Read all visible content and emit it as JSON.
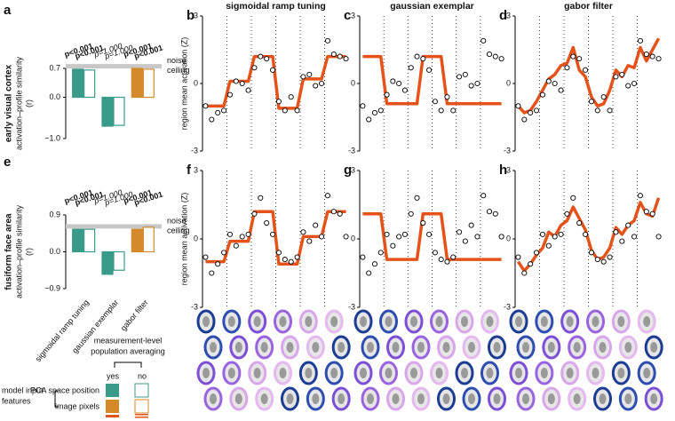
{
  "chart_data": [
    {
      "type": "bar",
      "label": "a",
      "row_label": "early visual cortex",
      "ylabel": [
        "activation–profile similarity",
        "(r)"
      ],
      "categories": [
        null,
        null,
        null
      ],
      "colors": [
        "#3a9a8a",
        "#3a9a8a",
        "#d4892a"
      ],
      "series": [
        {
          "fill": true,
          "values": [
            0.68,
            -0.7,
            0.7
          ]
        },
        {
          "fill": false,
          "values": [
            0.66,
            -0.68,
            0.68
          ]
        }
      ],
      "ylim": [
        -1.0,
        0.7
      ],
      "yticks": [
        {
          "value": 0.7,
          "label": "0.7"
        },
        {
          "value": 0,
          "label": "0.0"
        },
        {
          "value": -1,
          "label": "−1.0"
        }
      ],
      "noise_ceiling": 0.75,
      "noise_label": [
        "noise",
        "ceiling"
      ],
      "pvalues": [
        [
          "p<0.001",
          "p<0.001"
        ],
        [
          "p=1.000",
          "p=1.000"
        ],
        [
          "p<0.001",
          "p<0.001"
        ]
      ]
    },
    {
      "type": "line",
      "label": "b",
      "title": "sigmoidal ramp tuning",
      "ylabel": "region mean activation (Z)",
      "ylim": [
        -3,
        3
      ],
      "yticks": [
        3,
        0,
        -3
      ],
      "points": [
        -1.0,
        -1.6,
        -1.3,
        -1.2,
        -0.5,
        0.1,
        0.0,
        -0.3,
        0.7,
        1.2,
        1.1,
        0.6,
        -0.8,
        -1.2,
        -0.6,
        -1.2,
        0.3,
        0.4,
        -0.1,
        0.0,
        1.9,
        1.3,
        1.2,
        1.1
      ],
      "series": [
        {
          "color": "#e5531a",
          "values": [
            -1.0,
            -1.0,
            -1.0,
            -1.0,
            0.1,
            0.1,
            0.1,
            0.1,
            1.2,
            1.2,
            1.2,
            1.2,
            -1.1,
            -1.1,
            -1.1,
            -1.1,
            0.2,
            0.2,
            0.2,
            0.2,
            1.2,
            1.2,
            1.2,
            1.2
          ]
        }
      ]
    },
    {
      "type": "line",
      "label": "c",
      "title": "gaussian exemplar",
      "ylim": [
        -3,
        3
      ],
      "yticks": [
        3,
        0,
        -3
      ],
      "points": [
        -1.0,
        -1.6,
        -1.3,
        -1.2,
        -0.5,
        0.1,
        0.0,
        -0.3,
        0.7,
        1.2,
        1.1,
        0.6,
        -0.8,
        -1.2,
        -0.6,
        -1.2,
        0.3,
        0.4,
        -0.1,
        0.0,
        1.9,
        1.3,
        1.2,
        1.1
      ],
      "series": [
        {
          "color": "#e5531a",
          "values": [
            1.2,
            1.2,
            1.2,
            1.2,
            -0.9,
            -0.9,
            -0.9,
            -0.9,
            -0.9,
            -0.9,
            1.2,
            1.2,
            1.2,
            1.2,
            -0.9,
            -0.9,
            -0.9,
            -0.9,
            -0.9,
            -0.9,
            -0.9,
            -0.9,
            -0.9,
            -0.9
          ]
        }
      ]
    },
    {
      "type": "line",
      "label": "d",
      "title": "gabor filter",
      "ylim": [
        -3,
        3
      ],
      "yticks": [
        3,
        0,
        -3
      ],
      "points": [
        -1.0,
        -1.6,
        -1.3,
        -1.2,
        -0.5,
        0.1,
        0.0,
        -0.3,
        0.7,
        1.2,
        1.1,
        0.6,
        -0.8,
        -1.2,
        -0.6,
        -1.2,
        0.3,
        0.4,
        -0.1,
        0.0,
        1.9,
        1.3,
        1.2,
        1.1
      ],
      "series": [
        {
          "color": "#e5531a",
          "values": [
            -1.0,
            -1.3,
            -1.2,
            -0.8,
            -0.3,
            0.2,
            0.4,
            0.8,
            0.9,
            1.6,
            0.6,
            0.3,
            -0.6,
            -1.0,
            -0.9,
            -0.3,
            0.6,
            0.3,
            0.8,
            0.7,
            1.6,
            1.0,
            1.5,
            2.0
          ]
        }
      ]
    },
    {
      "type": "bar",
      "label": "e",
      "row_label": "fusiform face area",
      "ylabel": [
        "activation–profile similarity",
        "(r)"
      ],
      "categories": [
        "sigmoidal ramp tuning",
        "gaussian exemplar",
        "gabor filter"
      ],
      "colors": [
        "#3a9a8a",
        "#3a9a8a",
        "#d4892a"
      ],
      "series": [
        {
          "fill": true,
          "values": [
            0.55,
            -0.55,
            0.55
          ]
        },
        {
          "fill": false,
          "values": [
            0.55,
            -0.45,
            0.6
          ]
        }
      ],
      "ylim": [
        -0.9,
        0.9
      ],
      "yticks": [
        0.9,
        {
          "value": 0,
          "label": "0.0"
        },
        {
          "value": -0.9,
          "label": "−0.9"
        }
      ],
      "noise_ceiling": 0.62,
      "noise_label": [
        "noise",
        "ceiling"
      ],
      "pvalues": [
        [
          "p<0.001",
          "p<0.001"
        ],
        [
          "p=1.000",
          "p=1.000"
        ],
        [
          "p<0.001",
          "p<0.001"
        ]
      ]
    },
    {
      "type": "line",
      "label": "f",
      "ylabel": "region mean activation (Z)",
      "ylim": [
        -3,
        3
      ],
      "yticks": [
        3,
        0,
        -3
      ],
      "points": [
        -0.8,
        -1.5,
        -1.1,
        -0.6,
        0.2,
        -0.3,
        0.1,
        0.2,
        1.1,
        1.8,
        0.7,
        0.2,
        -0.6,
        -0.9,
        -1.0,
        -0.8,
        0.3,
        -0.1,
        0.6,
        0.1,
        1.9,
        1.2,
        1.1,
        0.1
      ],
      "series": [
        {
          "color": "#e5531a",
          "values": [
            -1.0,
            -1.0,
            -1.0,
            -1.0,
            -0.1,
            -0.1,
            -0.1,
            -0.1,
            1.2,
            1.2,
            1.2,
            1.2,
            -1.1,
            -1.1,
            -1.1,
            -1.1,
            0.1,
            0.1,
            0.1,
            0.1,
            1.2,
            1.2,
            1.2,
            1.2
          ]
        }
      ]
    },
    {
      "type": "line",
      "label": "g",
      "ylim": [
        -3,
        3
      ],
      "yticks": [
        3,
        0,
        -3
      ],
      "points": [
        -0.8,
        -1.5,
        -1.1,
        -0.6,
        0.2,
        -0.3,
        0.1,
        0.2,
        1.1,
        1.8,
        0.7,
        0.2,
        -0.6,
        -0.9,
        -1.0,
        -0.8,
        0.3,
        -0.1,
        0.6,
        0.1,
        1.9,
        1.2,
        1.1,
        0.1
      ],
      "series": [
        {
          "color": "#e5531a",
          "values": [
            1.1,
            1.1,
            1.1,
            1.1,
            -0.9,
            -0.9,
            -0.9,
            -0.9,
            -0.9,
            -0.9,
            1.1,
            1.1,
            1.1,
            1.1,
            -0.9,
            -0.9,
            -0.9,
            -0.9,
            -0.9,
            -0.9,
            -0.9,
            -0.9,
            -0.9,
            -0.9
          ]
        }
      ]
    },
    {
      "type": "line",
      "label": "h",
      "ylim": [
        -3,
        3
      ],
      "yticks": [
        3,
        0,
        -3
      ],
      "points": [
        -0.8,
        -1.5,
        -1.1,
        -0.6,
        0.2,
        -0.3,
        0.1,
        0.2,
        1.1,
        1.8,
        0.7,
        0.2,
        -0.6,
        -0.9,
        -1.0,
        -0.8,
        0.3,
        -0.1,
        0.6,
        0.1,
        1.9,
        1.2,
        1.1,
        0.1
      ],
      "series": [
        {
          "color": "#e5531a",
          "values": [
            -1.0,
            -1.4,
            -1.1,
            -0.7,
            -0.4,
            0.3,
            0.1,
            0.6,
            0.8,
            1.4,
            0.9,
            0.4,
            -0.5,
            -0.9,
            -0.8,
            -0.4,
            0.5,
            0.2,
            0.6,
            0.8,
            1.6,
            1.1,
            1.0,
            1.8
          ]
        }
      ]
    }
  ],
  "legend": {
    "title": [
      "measurement-level",
      "population averaging"
    ],
    "yes": "yes",
    "no": "no",
    "group": [
      "model input",
      "features"
    ],
    "pca": "PCA space position",
    "pixels": "image pixels"
  }
}
